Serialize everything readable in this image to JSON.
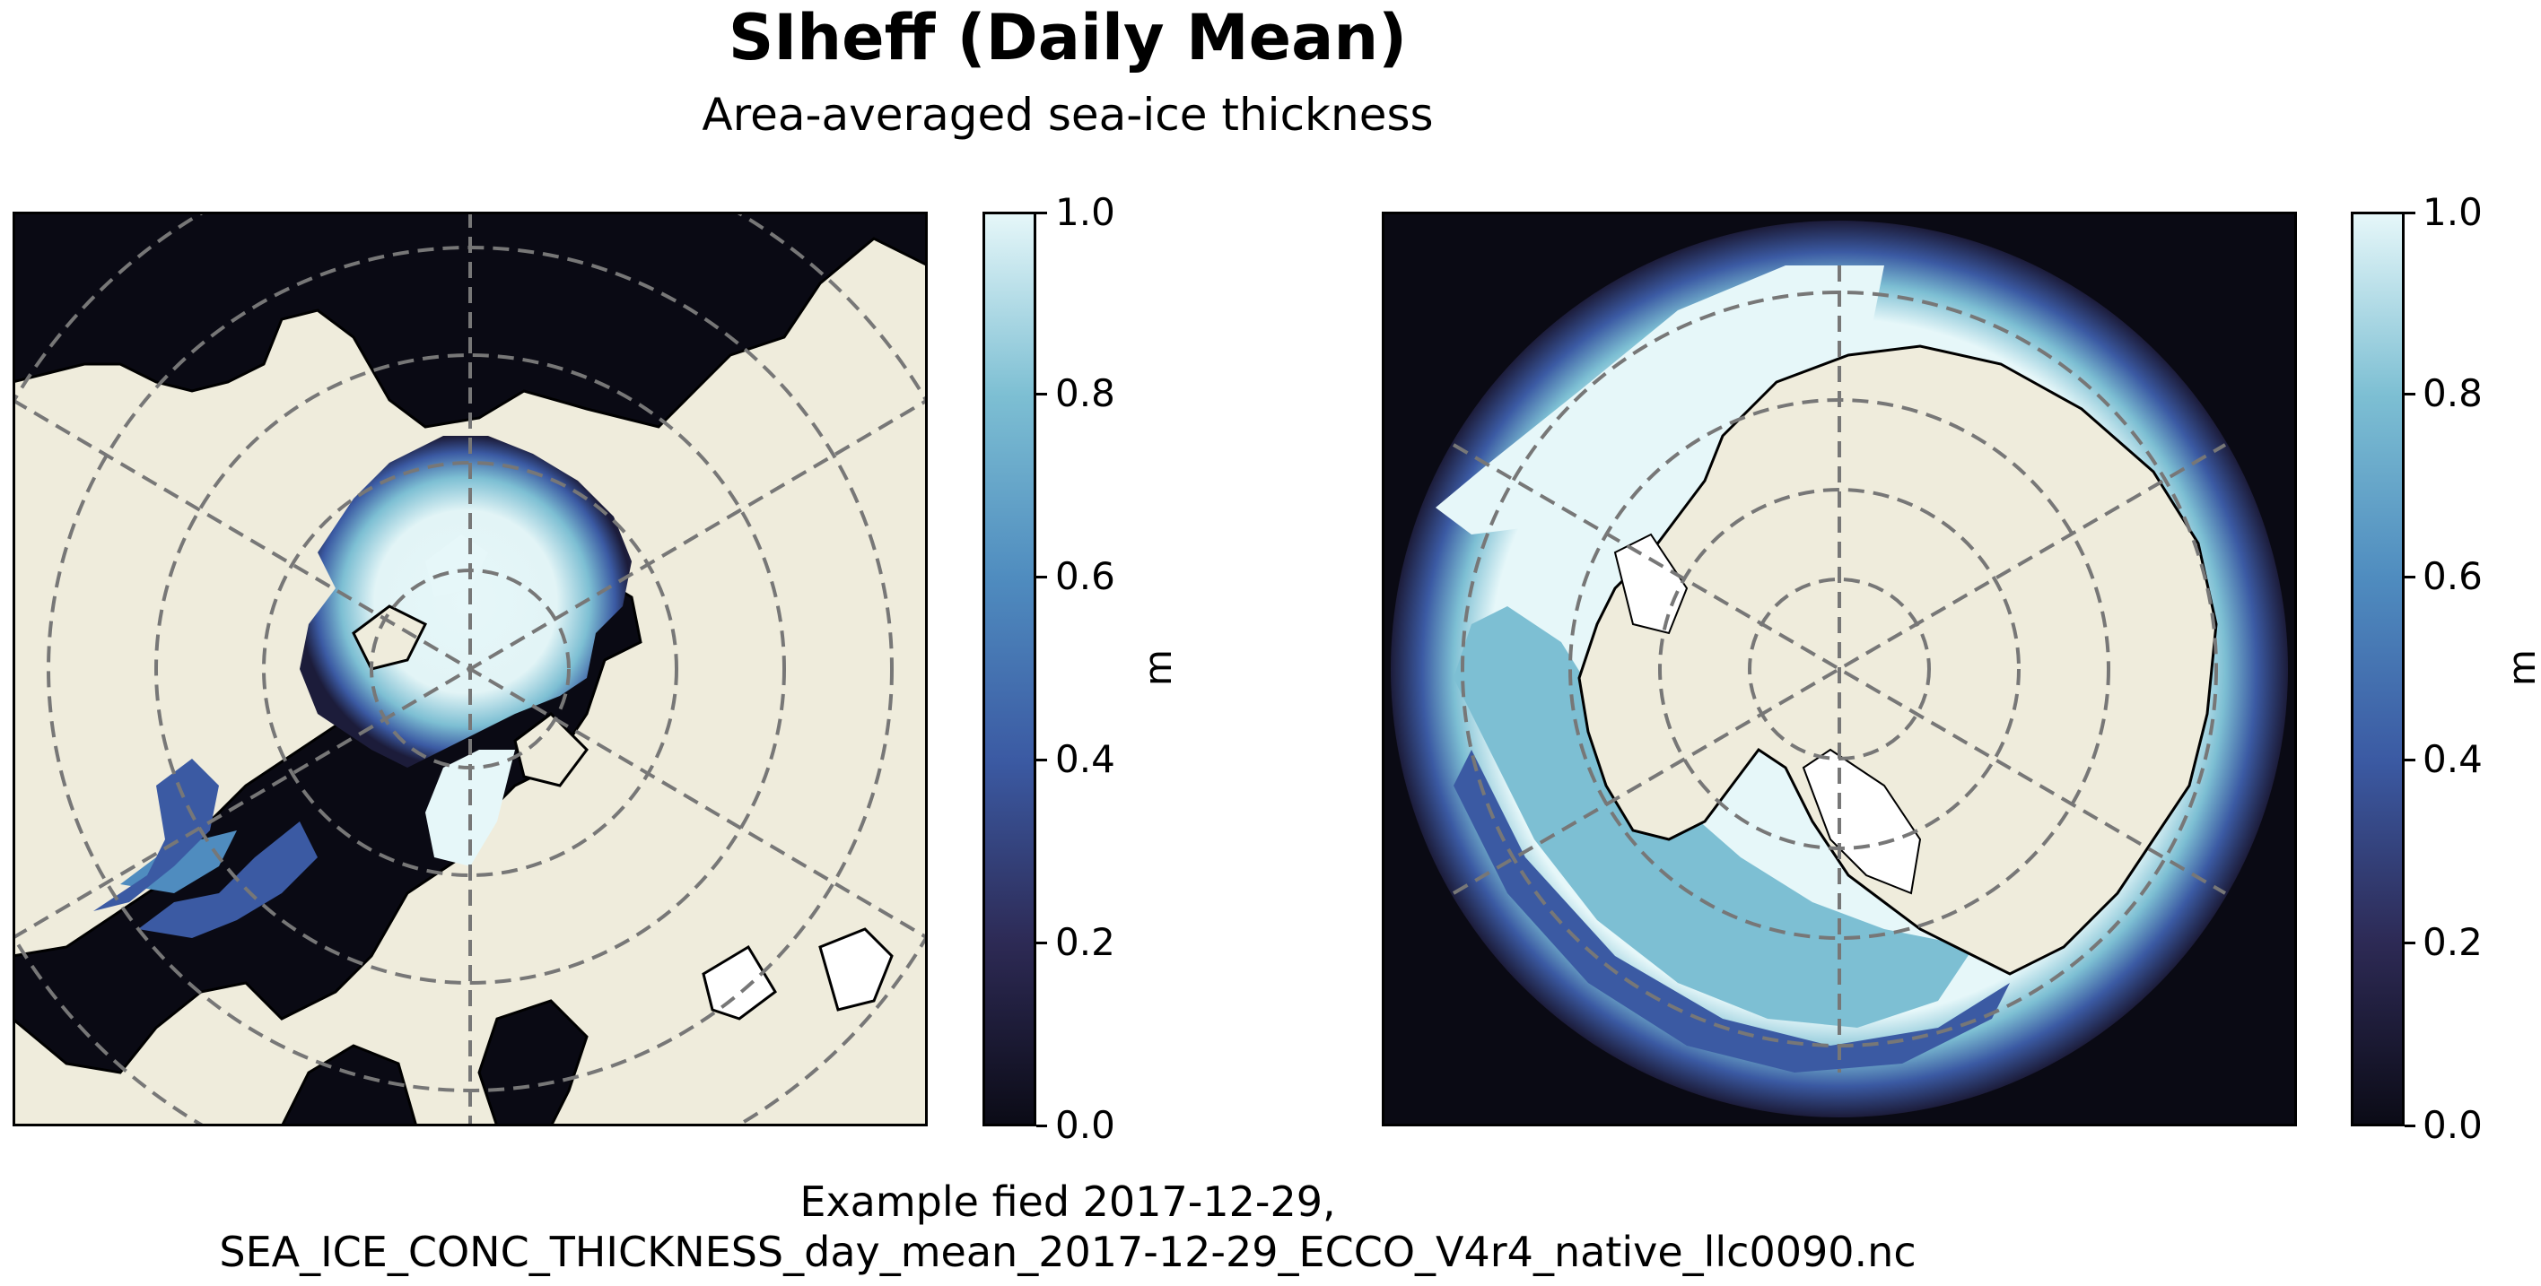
{
  "title": "SIheff (Daily Mean)",
  "subtitle": "Area-averaged sea-ice thickness",
  "caption_line1": "Example fied 2017-12-29,",
  "caption_line2": "SEA_ICE_CONC_THICKNESS_day_mean_2017-12-29_ECCO_V4r4_native_llc0090.nc",
  "colorbar": {
    "unit": "m",
    "ticks": [
      "0.0",
      "0.2",
      "0.4",
      "0.6",
      "0.8",
      "1.0"
    ],
    "colors": [
      "#0b0b16",
      "#2d2a55",
      "#3b5aa3",
      "#4f8cbf",
      "#7dbfd3",
      "#e6f7f9"
    ]
  },
  "maps": [
    {
      "name": "north-polar-map",
      "hemisphere": "Arctic"
    },
    {
      "name": "south-polar-map",
      "hemisphere": "Antarctic"
    }
  ],
  "colors": {
    "land": "#efecdc",
    "ocean": "#0a0a14",
    "grid": "#777777"
  }
}
